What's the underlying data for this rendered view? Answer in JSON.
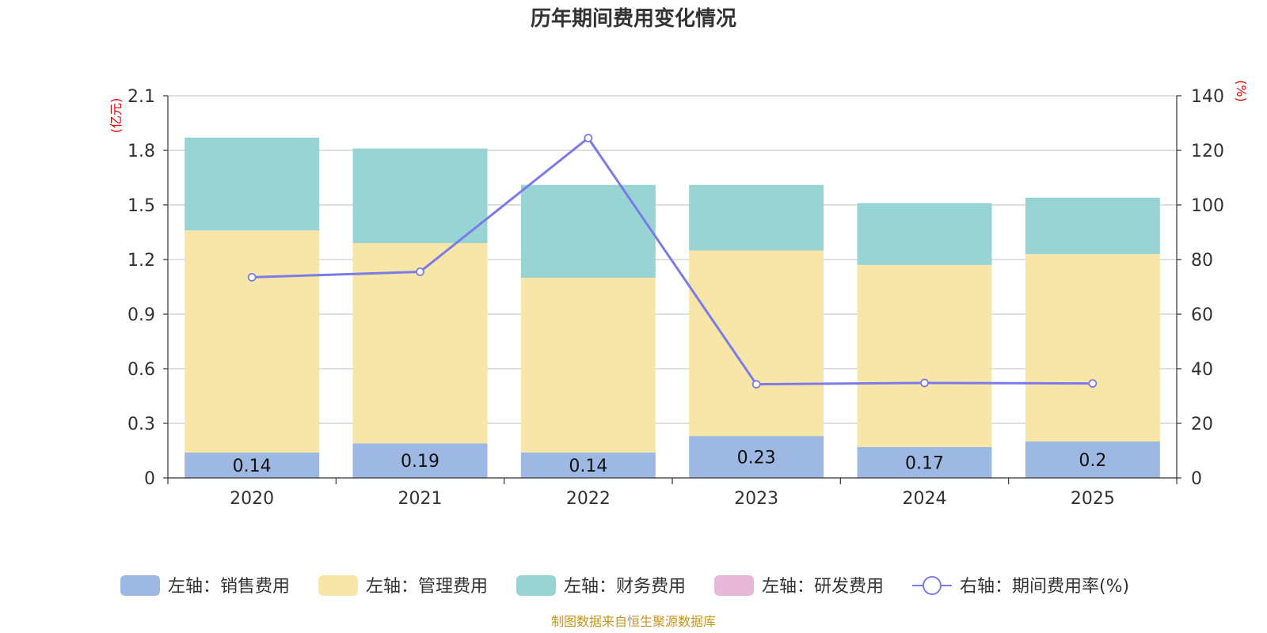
{
  "chart_data": {
    "type": "bar",
    "stacked": true,
    "title": "历年期间费用变化情况",
    "categories": [
      "2020",
      "2021",
      "2022",
      "2023",
      "2024",
      "2025"
    ],
    "left_axis": {
      "unit": "(亿元)",
      "ylim": [
        0,
        2.1
      ],
      "ticks": [
        "0",
        "0.3",
        "0.6",
        "0.9",
        "1.2",
        "1.5",
        "1.8",
        "2.1"
      ]
    },
    "right_axis": {
      "unit": "(%)",
      "ylim": [
        0,
        140
      ],
      "ticks": [
        "0",
        "20",
        "40",
        "60",
        "80",
        "100",
        "120",
        "140"
      ]
    },
    "series": [
      {
        "name": "左轴：销售费用",
        "axis": "left",
        "color": "#9db8e2",
        "values": [
          0.14,
          0.19,
          0.14,
          0.23,
          0.17,
          0.2
        ],
        "labels": [
          "0.14",
          "0.19",
          "0.14",
          "0.23",
          "0.17",
          "0.2"
        ]
      },
      {
        "name": "左轴：管理费用",
        "axis": "left",
        "color": "#f7e6a8",
        "values": [
          1.22,
          1.1,
          0.96,
          1.02,
          1.0,
          1.03
        ]
      },
      {
        "name": "左轴：财务费用",
        "axis": "left",
        "color": "#98d4d4",
        "values": [
          0.51,
          0.52,
          0.51,
          0.36,
          0.34,
          0.31
        ]
      },
      {
        "name": "左轴：研发费用",
        "axis": "left",
        "color": "#e8b8d8",
        "values": [
          0,
          0,
          0,
          0,
          0,
          0
        ]
      },
      {
        "name": "右轴：期间费用率(%)",
        "axis": "right",
        "type": "line",
        "color": "#7b7be8",
        "values": [
          73.5,
          75.5,
          124.5,
          34.3,
          34.8,
          34.6
        ]
      }
    ],
    "legend_position": "bottom",
    "source_note": "制图数据来自恒生聚源数据库"
  }
}
